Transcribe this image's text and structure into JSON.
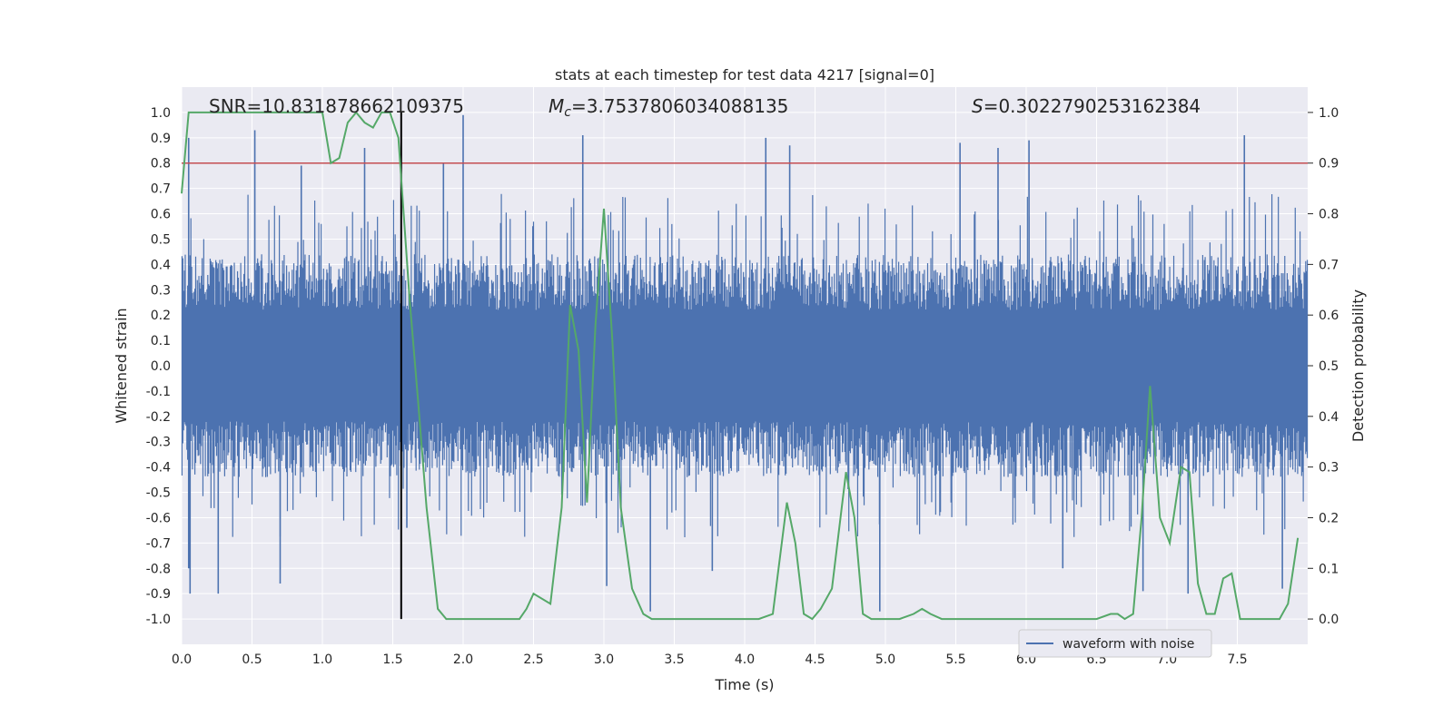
{
  "chart_data": {
    "type": "line",
    "title": "stats at each timestep for test data 4217 [signal=0]",
    "xlabel": "Time (s)",
    "ylabel": "Whitened strain",
    "y2label": "Detection probability",
    "xlim": [
      0.0,
      8.0
    ],
    "ylim": [
      -1.1,
      1.1
    ],
    "y2lim": [
      -0.05,
      1.05
    ],
    "grid": true,
    "x_ticks": [
      "0.0",
      "0.5",
      "1.0",
      "1.5",
      "2.0",
      "2.5",
      "3.0",
      "3.5",
      "4.0",
      "4.5",
      "5.0",
      "5.5",
      "6.0",
      "6.5",
      "7.0",
      "7.5"
    ],
    "y_ticks": [
      "-1.0",
      "-0.9",
      "-0.8",
      "-0.7",
      "-0.6",
      "-0.5",
      "-0.4",
      "-0.3",
      "-0.2",
      "-0.1",
      "0.0",
      "0.1",
      "0.2",
      "0.3",
      "0.4",
      "0.5",
      "0.6",
      "0.7",
      "0.8",
      "0.9",
      "1.0"
    ],
    "y2_ticks": [
      "0.0",
      "0.1",
      "0.2",
      "0.3",
      "0.4",
      "0.5",
      "0.6",
      "0.7",
      "0.8",
      "0.9",
      "1.0"
    ],
    "annotations": {
      "snr_text": "SNR=10.831878662109375",
      "mc_symbol": "M",
      "mc_sub": "c",
      "mc_value": "=3.7537806034088135",
      "s_symbol": "S",
      "s_value": "=0.3022790253162384"
    },
    "threshold_line": {
      "y2": 0.9,
      "color": "#c44e52"
    },
    "vertical_line": {
      "x": 1.56,
      "color": "#000000"
    },
    "legend": {
      "position": "lower-right",
      "entries": [
        "waveform with noise"
      ]
    },
    "series": [
      {
        "name": "waveform with noise",
        "axis": "left",
        "color": "#4c72b0",
        "envelope_typical": 0.4,
        "spikes": [
          {
            "x": 0.05,
            "y": 0.9
          },
          {
            "x": 0.05,
            "y": -0.8
          },
          {
            "x": 0.06,
            "y": -0.9
          },
          {
            "x": 0.26,
            "y": -0.9
          },
          {
            "x": 0.52,
            "y": 0.93
          },
          {
            "x": 0.7,
            "y": -0.86
          },
          {
            "x": 0.85,
            "y": 0.79
          },
          {
            "x": 1.3,
            "y": 0.86
          },
          {
            "x": 1.6,
            "y": -0.64
          },
          {
            "x": 1.86,
            "y": 0.8
          },
          {
            "x": 2.0,
            "y": 0.99
          },
          {
            "x": 2.85,
            "y": 0.91
          },
          {
            "x": 3.02,
            "y": -0.87
          },
          {
            "x": 3.33,
            "y": -0.97
          },
          {
            "x": 3.77,
            "y": -0.81
          },
          {
            "x": 4.15,
            "y": 0.9
          },
          {
            "x": 4.32,
            "y": 0.87
          },
          {
            "x": 4.96,
            "y": -0.97
          },
          {
            "x": 5.53,
            "y": 0.88
          },
          {
            "x": 5.8,
            "y": 0.86
          },
          {
            "x": 6.02,
            "y": 0.89
          },
          {
            "x": 6.26,
            "y": -0.8
          },
          {
            "x": 6.83,
            "y": -0.89
          },
          {
            "x": 7.15,
            "y": -0.9
          },
          {
            "x": 7.55,
            "y": 0.91
          },
          {
            "x": 7.82,
            "y": -0.88
          }
        ]
      },
      {
        "name": "",
        "axis": "right",
        "color": "#55a868",
        "x": [
          0.0,
          0.05,
          0.08,
          0.15,
          0.3,
          0.5,
          0.7,
          0.9,
          1.0,
          1.06,
          1.12,
          1.18,
          1.24,
          1.3,
          1.36,
          1.42,
          1.48,
          1.54,
          1.62,
          1.68,
          1.74,
          1.82,
          1.88,
          1.95,
          2.05,
          2.2,
          2.4,
          2.45,
          2.5,
          2.62,
          2.7,
          2.76,
          2.82,
          2.88,
          2.94,
          3.0,
          3.06,
          3.12,
          3.2,
          3.28,
          3.34,
          3.4,
          3.6,
          3.8,
          4.0,
          4.1,
          4.2,
          4.3,
          4.36,
          4.42,
          4.48,
          4.54,
          4.62,
          4.72,
          4.78,
          4.84,
          4.9,
          5.0,
          5.1,
          5.2,
          5.26,
          5.32,
          5.4,
          5.6,
          5.8,
          6.0,
          6.1,
          6.3,
          6.5,
          6.6,
          6.65,
          6.7,
          6.76,
          6.82,
          6.88,
          6.95,
          7.02,
          7.1,
          7.16,
          7.22,
          7.28,
          7.34,
          7.4,
          7.46,
          7.52,
          7.6,
          7.7,
          7.8,
          7.86,
          7.93
        ],
        "y": [
          0.84,
          1.0,
          1.0,
          1.0,
          1.0,
          1.0,
          1.0,
          1.0,
          1.0,
          0.9,
          0.91,
          0.98,
          1.0,
          0.98,
          0.97,
          1.0,
          1.0,
          0.95,
          0.63,
          0.43,
          0.22,
          0.02,
          0.0,
          0.0,
          0.0,
          0.0,
          0.0,
          0.02,
          0.05,
          0.03,
          0.22,
          0.62,
          0.53,
          0.23,
          0.58,
          0.81,
          0.55,
          0.22,
          0.06,
          0.01,
          0.0,
          0.0,
          0.0,
          0.0,
          0.0,
          0.0,
          0.01,
          0.23,
          0.15,
          0.01,
          0.0,
          0.02,
          0.06,
          0.29,
          0.2,
          0.01,
          0.0,
          0.0,
          0.0,
          0.01,
          0.02,
          0.01,
          0.0,
          0.0,
          0.0,
          0.0,
          0.0,
          0.0,
          0.0,
          0.01,
          0.01,
          0.0,
          0.01,
          0.2,
          0.46,
          0.2,
          0.15,
          0.3,
          0.29,
          0.07,
          0.01,
          0.01,
          0.08,
          0.09,
          0.0,
          0.0,
          0.0,
          0.0,
          0.03,
          0.16
        ]
      }
    ]
  }
}
